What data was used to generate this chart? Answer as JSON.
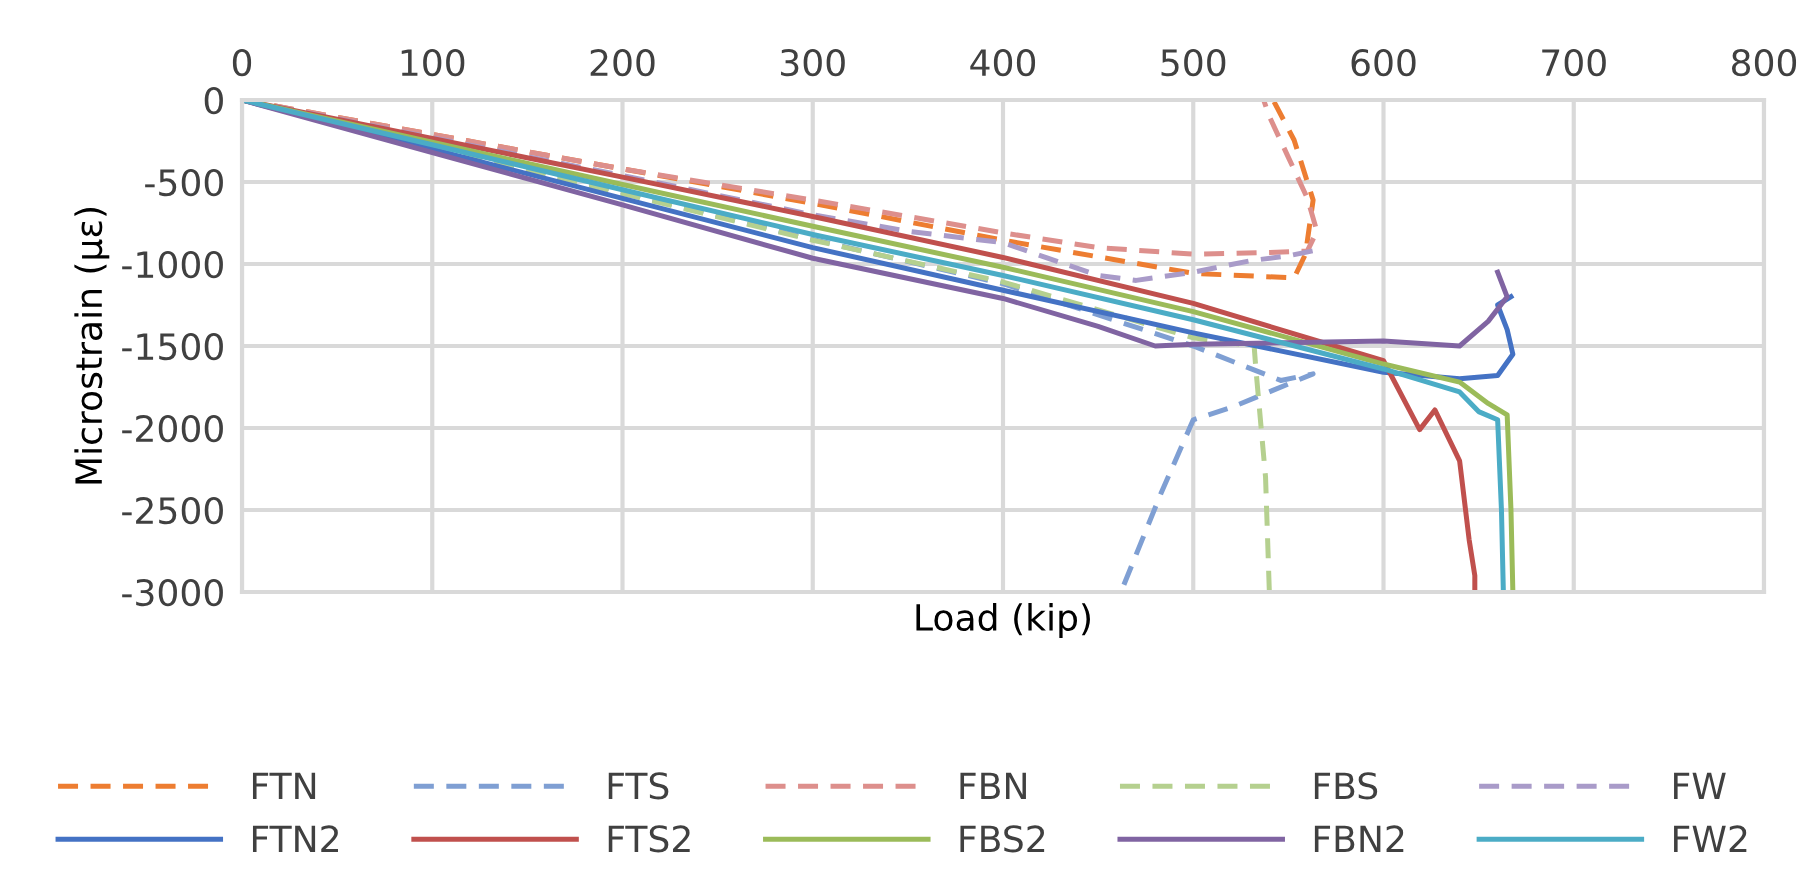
{
  "chart_data": {
    "type": "line",
    "xlabel": "Load (kip)",
    "ylabel": "Microstrain (με)",
    "xlim": [
      0,
      800
    ],
    "ylim": [
      -3000,
      0
    ],
    "xticks": [
      0,
      100,
      200,
      300,
      400,
      500,
      600,
      700,
      800
    ],
    "yticks": [
      -3000,
      -2500,
      -2000,
      -1500,
      -1000,
      -500,
      0
    ],
    "grid": true,
    "legend": "bottom",
    "marker": "none",
    "series": [
      {
        "name": "FTN",
        "color": "#ed7d31",
        "line_style": "dashed",
        "x": [
          0,
          100,
          200,
          300,
          400,
          500,
          553,
          559,
          563,
          553,
          542
        ],
        "values": [
          0,
          -210,
          -420,
          -630,
          -855,
          -1057,
          -1085,
          -940,
          -610,
          -244,
          0
        ]
      },
      {
        "name": "FTS",
        "color": "#7f9fd3",
        "line_style": "dashed",
        "x": [
          0,
          100,
          200,
          300,
          400,
          500,
          546,
          563,
          521,
          500,
          483,
          462
        ],
        "values": [
          0,
          -280,
          -560,
          -850,
          -1120,
          -1500,
          -1710,
          -1670,
          -1870,
          -1950,
          -2400,
          -3000
        ]
      },
      {
        "name": "FBN",
        "color": "#dd8f8c",
        "line_style": "dashed",
        "x": [
          0,
          100,
          200,
          300,
          400,
          450,
          500,
          540,
          560,
          565,
          560,
          550,
          540,
          537
        ],
        "values": [
          0,
          -210,
          -420,
          -610,
          -810,
          -900,
          -940,
          -930,
          -920,
          -800,
          -600,
          -350,
          -100,
          0
        ]
      },
      {
        "name": "FBS",
        "color": "#b5d08f",
        "line_style": "dashed",
        "x": [
          0,
          100,
          200,
          300,
          400,
          500,
          532,
          533,
          538,
          540
        ],
        "values": [
          0,
          -285,
          -570,
          -855,
          -1110,
          -1450,
          -1500,
          -1650,
          -2300,
          -3000
        ]
      },
      {
        "name": "FW",
        "color": "#a99bc9",
        "line_style": "dashed",
        "x": [
          0,
          100,
          200,
          300,
          350,
          400,
          420,
          450,
          470,
          500,
          530,
          550,
          565
        ],
        "values": [
          0,
          -230,
          -460,
          -700,
          -800,
          -870,
          -950,
          -1070,
          -1100,
          -1050,
          -980,
          -950,
          -915
        ]
      },
      {
        "name": "FTN2",
        "color": "#4472c4",
        "line_style": "solid",
        "x": [
          0,
          100,
          200,
          300,
          400,
          500,
          600,
          640,
          660,
          668,
          665,
          660,
          667
        ],
        "values": [
          0,
          -300,
          -600,
          -900,
          -1160,
          -1420,
          -1660,
          -1700,
          -1680,
          -1550,
          -1400,
          -1250,
          -1200
        ]
      },
      {
        "name": "FTS2",
        "color": "#c0504d",
        "line_style": "solid",
        "x": [
          0,
          100,
          200,
          300,
          400,
          500,
          600,
          619,
          627,
          640,
          645,
          648,
          648
        ],
        "values": [
          0,
          -235,
          -470,
          -710,
          -960,
          -1240,
          -1590,
          -2010,
          -1890,
          -2200,
          -2680,
          -2900,
          -3000
        ]
      },
      {
        "name": "FBS2",
        "color": "#9bbb59",
        "line_style": "solid",
        "x": [
          0,
          100,
          200,
          300,
          400,
          500,
          600,
          640,
          655,
          665,
          667,
          668
        ],
        "values": [
          0,
          -257,
          -515,
          -770,
          -1020,
          -1290,
          -1610,
          -1720,
          -1850,
          -1920,
          -2500,
          -3000
        ]
      },
      {
        "name": "FBN2",
        "color": "#8064a2",
        "line_style": "solid",
        "x": [
          0,
          100,
          200,
          300,
          400,
          450,
          480,
          500,
          600,
          640,
          655,
          665,
          660
        ],
        "values": [
          0,
          -320,
          -640,
          -965,
          -1210,
          -1380,
          -1500,
          -1490,
          -1470,
          -1500,
          -1350,
          -1200,
          -1050
        ]
      },
      {
        "name": "FW2",
        "color": "#4bacc6",
        "line_style": "solid",
        "x": [
          0,
          100,
          200,
          300,
          400,
          500,
          600,
          640,
          650,
          660,
          662,
          663
        ],
        "values": [
          0,
          -273,
          -547,
          -820,
          -1070,
          -1340,
          -1640,
          -1780,
          -1900,
          -1950,
          -2500,
          -3000
        ]
      }
    ]
  }
}
